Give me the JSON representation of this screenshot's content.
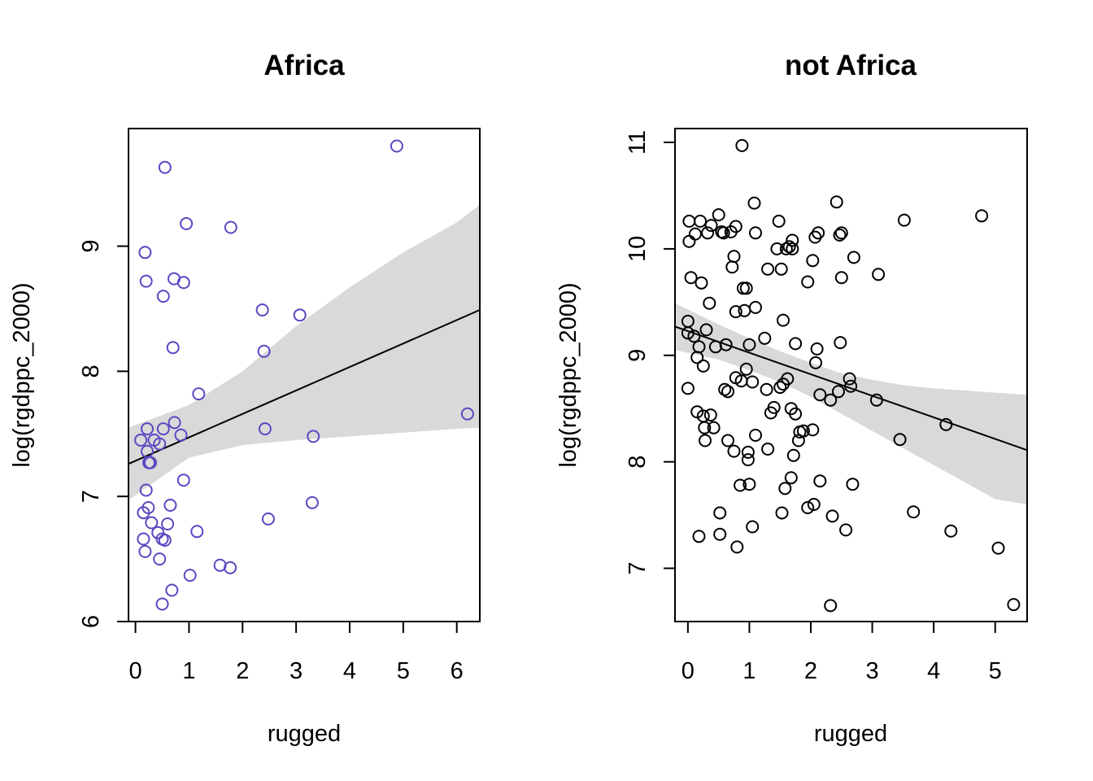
{
  "chart_data": [
    {
      "type": "scatter",
      "title": "Africa",
      "xlabel": "rugged",
      "ylabel": "log(rgdppc_2000)",
      "xlim": [
        -0.13,
        6.43
      ],
      "ylim": [
        6.0,
        9.94
      ],
      "xticks": [
        "0",
        "1",
        "2",
        "3",
        "4",
        "5",
        "6"
      ],
      "yticks": [
        "6",
        "7",
        "8",
        "9"
      ],
      "point_color": "#5a48c2",
      "band_color": "#d9d9d9",
      "line_color": "#000000",
      "points": [
        [
          0.1,
          7.45
        ],
        [
          0.15,
          6.87
        ],
        [
          0.15,
          6.66
        ],
        [
          0.18,
          6.56
        ],
        [
          0.18,
          8.95
        ],
        [
          0.2,
          7.05
        ],
        [
          0.2,
          8.72
        ],
        [
          0.22,
          7.36
        ],
        [
          0.22,
          7.54
        ],
        [
          0.24,
          6.91
        ],
        [
          0.25,
          7.27
        ],
        [
          0.28,
          7.27
        ],
        [
          0.3,
          6.79
        ],
        [
          0.35,
          7.45
        ],
        [
          0.42,
          6.71
        ],
        [
          0.45,
          7.42
        ],
        [
          0.45,
          6.5
        ],
        [
          0.5,
          6.66
        ],
        [
          0.5,
          6.14
        ],
        [
          0.52,
          8.6
        ],
        [
          0.52,
          7.54
        ],
        [
          0.55,
          6.65
        ],
        [
          0.55,
          9.63
        ],
        [
          0.6,
          6.78
        ],
        [
          0.65,
          6.93
        ],
        [
          0.68,
          6.25
        ],
        [
          0.7,
          8.19
        ],
        [
          0.72,
          8.74
        ],
        [
          0.73,
          7.59
        ],
        [
          0.85,
          7.49
        ],
        [
          0.9,
          7.13
        ],
        [
          0.9,
          8.71
        ],
        [
          0.95,
          9.18
        ],
        [
          1.02,
          6.37
        ],
        [
          1.15,
          6.72
        ],
        [
          1.18,
          7.82
        ],
        [
          1.58,
          6.45
        ],
        [
          1.77,
          6.43
        ],
        [
          1.78,
          9.15
        ],
        [
          2.37,
          8.49
        ],
        [
          2.4,
          8.16
        ],
        [
          2.42,
          7.54
        ],
        [
          2.48,
          6.82
        ],
        [
          3.07,
          8.45
        ],
        [
          3.3,
          6.95
        ],
        [
          3.32,
          7.48
        ],
        [
          4.88,
          9.8
        ],
        [
          6.2,
          7.66
        ]
      ],
      "fit": {
        "x": [
          -0.13,
          6.43
        ],
        "y": [
          7.26,
          8.49
        ]
      },
      "band": {
        "x": [
          -0.13,
          1.0,
          2.0,
          3.0,
          4.0,
          5.0,
          6.0,
          6.43
        ],
        "lower": [
          6.97,
          7.31,
          7.41,
          7.45,
          7.48,
          7.51,
          7.54,
          7.55
        ],
        "upper": [
          7.55,
          7.73,
          8.0,
          8.36,
          8.67,
          8.95,
          9.19,
          9.33
        ]
      }
    },
    {
      "type": "scatter",
      "title": "not Africa",
      "xlabel": "rugged",
      "ylabel": "log(rgdppc_2000)",
      "xlim": [
        -0.21,
        5.52
      ],
      "ylim": [
        6.5,
        11.13
      ],
      "xticks": [
        "0",
        "1",
        "2",
        "3",
        "4",
        "5"
      ],
      "yticks": [
        "7",
        "8",
        "9",
        "10",
        "11"
      ],
      "point_color": "#000000",
      "band_color": "#d9d9d9",
      "line_color": "#000000",
      "points": [
        [
          0.0,
          9.32
        ],
        [
          0.0,
          9.21
        ],
        [
          0.0,
          8.69
        ],
        [
          0.02,
          10.07
        ],
        [
          0.02,
          10.26
        ],
        [
          0.05,
          9.73
        ],
        [
          0.1,
          9.18
        ],
        [
          0.12,
          10.14
        ],
        [
          0.15,
          8.98
        ],
        [
          0.15,
          8.47
        ],
        [
          0.18,
          9.08
        ],
        [
          0.18,
          7.3
        ],
        [
          0.2,
          10.26
        ],
        [
          0.22,
          9.68
        ],
        [
          0.25,
          8.43
        ],
        [
          0.25,
          8.9
        ],
        [
          0.27,
          8.32
        ],
        [
          0.28,
          8.2
        ],
        [
          0.3,
          9.24
        ],
        [
          0.32,
          10.15
        ],
        [
          0.35,
          9.49
        ],
        [
          0.37,
          8.44
        ],
        [
          0.38,
          10.22
        ],
        [
          0.42,
          8.32
        ],
        [
          0.45,
          9.08
        ],
        [
          0.5,
          10.32
        ],
        [
          0.52,
          7.52
        ],
        [
          0.52,
          7.32
        ],
        [
          0.55,
          10.16
        ],
        [
          0.58,
          10.15
        ],
        [
          0.6,
          8.68
        ],
        [
          0.62,
          9.1
        ],
        [
          0.65,
          8.66
        ],
        [
          0.65,
          8.2
        ],
        [
          0.7,
          10.16
        ],
        [
          0.72,
          9.83
        ],
        [
          0.75,
          9.93
        ],
        [
          0.75,
          8.1
        ],
        [
          0.78,
          9.41
        ],
        [
          0.78,
          8.79
        ],
        [
          0.78,
          10.21
        ],
        [
          0.8,
          7.2
        ],
        [
          0.85,
          7.78
        ],
        [
          0.87,
          8.76
        ],
        [
          0.88,
          10.97
        ],
        [
          0.9,
          9.63
        ],
        [
          0.92,
          9.42
        ],
        [
          0.95,
          9.63
        ],
        [
          0.95,
          8.87
        ],
        [
          0.98,
          8.02
        ],
        [
          0.98,
          8.09
        ],
        [
          1.0,
          9.1
        ],
        [
          1.0,
          7.79
        ],
        [
          1.05,
          8.75
        ],
        [
          1.05,
          7.39
        ],
        [
          1.08,
          10.43
        ],
        [
          1.1,
          10.15
        ],
        [
          1.1,
          9.45
        ],
        [
          1.1,
          8.25
        ],
        [
          1.25,
          9.16
        ],
        [
          1.28,
          8.68
        ],
        [
          1.3,
          8.12
        ],
        [
          1.3,
          9.81
        ],
        [
          1.35,
          8.46
        ],
        [
          1.4,
          8.51
        ],
        [
          1.45,
          10.0
        ],
        [
          1.48,
          10.26
        ],
        [
          1.5,
          8.7
        ],
        [
          1.52,
          9.81
        ],
        [
          1.53,
          7.52
        ],
        [
          1.55,
          9.33
        ],
        [
          1.55,
          8.73
        ],
        [
          1.58,
          7.75
        ],
        [
          1.6,
          10.0
        ],
        [
          1.62,
          8.78
        ],
        [
          1.65,
          10.02
        ],
        [
          1.68,
          7.85
        ],
        [
          1.68,
          8.5
        ],
        [
          1.7,
          10.0
        ],
        [
          1.7,
          10.08
        ],
        [
          1.72,
          8.06
        ],
        [
          1.75,
          9.11
        ],
        [
          1.75,
          8.45
        ],
        [
          1.8,
          8.2
        ],
        [
          1.82,
          8.28
        ],
        [
          1.88,
          8.29
        ],
        [
          1.95,
          9.69
        ],
        [
          1.95,
          7.57
        ],
        [
          2.03,
          9.89
        ],
        [
          2.03,
          8.3
        ],
        [
          2.05,
          7.6
        ],
        [
          2.07,
          10.11
        ],
        [
          2.08,
          8.93
        ],
        [
          2.1,
          9.06
        ],
        [
          2.12,
          10.15
        ],
        [
          2.15,
          8.63
        ],
        [
          2.15,
          7.82
        ],
        [
          2.32,
          8.58
        ],
        [
          2.32,
          6.65
        ],
        [
          2.35,
          7.49
        ],
        [
          2.42,
          10.44
        ],
        [
          2.45,
          8.66
        ],
        [
          2.47,
          10.13
        ],
        [
          2.48,
          9.12
        ],
        [
          2.5,
          9.73
        ],
        [
          2.5,
          10.15
        ],
        [
          2.57,
          7.36
        ],
        [
          2.63,
          8.78
        ],
        [
          2.65,
          8.71
        ],
        [
          2.68,
          7.79
        ],
        [
          2.7,
          9.92
        ],
        [
          3.07,
          8.58
        ],
        [
          3.1,
          9.76
        ],
        [
          3.45,
          8.21
        ],
        [
          3.52,
          10.27
        ],
        [
          3.67,
          7.53
        ],
        [
          4.2,
          8.35
        ],
        [
          4.28,
          7.35
        ],
        [
          4.78,
          10.31
        ],
        [
          5.05,
          7.19
        ],
        [
          5.3,
          6.66
        ]
      ],
      "fit": {
        "x": [
          -0.21,
          5.52
        ],
        "y": [
          9.27,
          8.11
        ]
      },
      "band": {
        "x": [
          -0.21,
          0.5,
          1.0,
          1.5,
          2.0,
          2.5,
          3.0,
          3.5,
          4.0,
          4.5,
          5.0,
          5.52
        ],
        "lower": [
          9.05,
          8.96,
          8.86,
          8.75,
          8.61,
          8.45,
          8.29,
          8.13,
          7.97,
          7.81,
          7.65,
          7.6
        ],
        "upper": [
          9.49,
          9.29,
          9.16,
          9.04,
          8.93,
          8.83,
          8.77,
          8.72,
          8.69,
          8.67,
          8.65,
          8.63
        ]
      }
    }
  ]
}
